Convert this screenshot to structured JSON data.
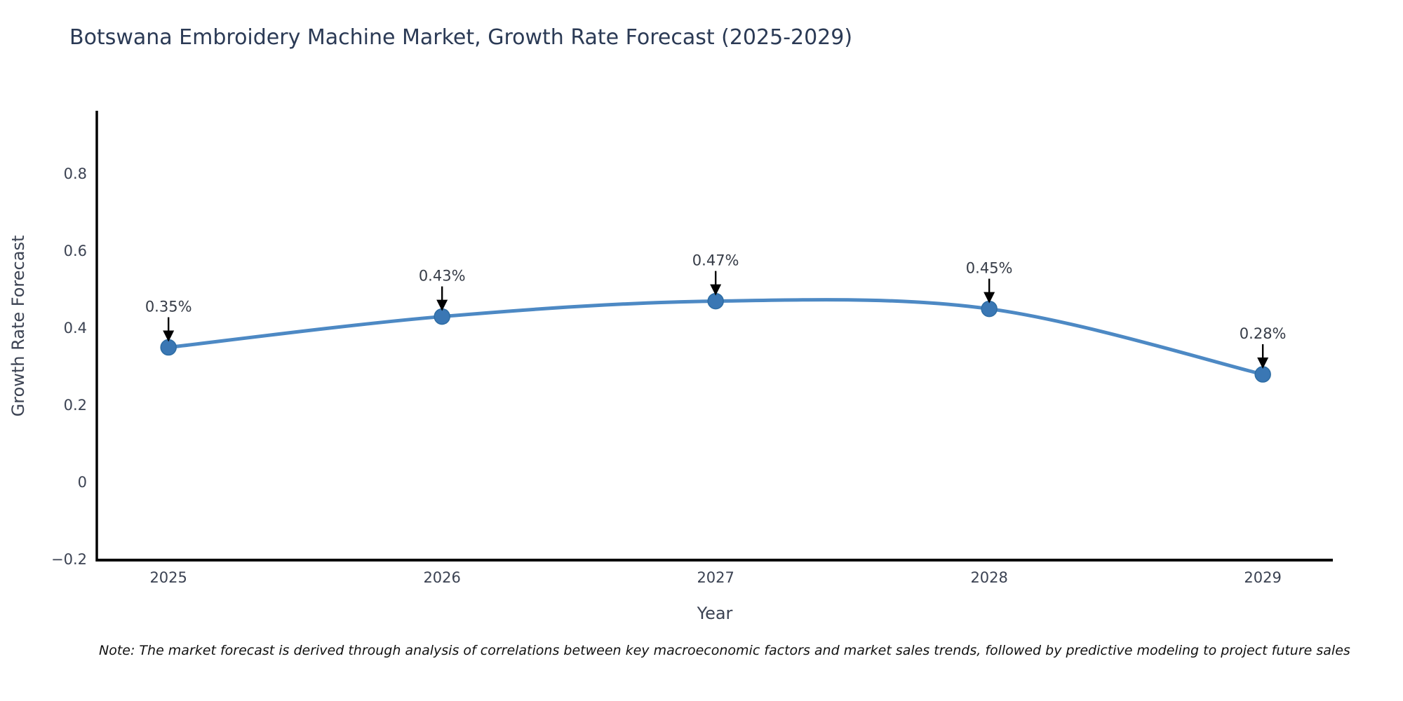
{
  "title": "Botswana Embroidery Machine Market, Growth Rate Forecast (2025-2029)",
  "note": "Note: The market forecast is derived through analysis of correlations between key macroeconomic factors and market sales trends, followed by predictive modeling to project future sales",
  "chart_data": {
    "type": "line",
    "title": "Botswana Embroidery Machine Market, Growth Rate Forecast (2025-2029)",
    "xlabel": "Year",
    "ylabel": "Growth Rate Forecast",
    "x": [
      2025,
      2026,
      2027,
      2028,
      2029
    ],
    "values": [
      0.35,
      0.43,
      0.47,
      0.45,
      0.28
    ],
    "point_labels": [
      "0.35%",
      "0.43%",
      "0.47%",
      "0.45%",
      "0.28%"
    ],
    "xticks": {
      "values": [
        2025,
        2026,
        2027,
        2028,
        2029
      ],
      "labels": [
        "2025",
        "2026",
        "2027",
        "2028",
        "2029"
      ]
    },
    "yticks": {
      "values": [
        -0.2,
        0,
        0.2,
        0.4,
        0.6,
        0.8
      ],
      "labels": [
        "−0.2",
        "0",
        "0.2",
        "0.4",
        "0.6",
        "0.8"
      ]
    },
    "xlim": [
      2024.738,
      2029.256
    ],
    "ylim": [
      -0.202,
      0.964
    ],
    "grid": false,
    "legend": null,
    "smooth_line": true,
    "annotation_style": "label-with-down-arrow"
  },
  "colors": {
    "background": "#ffffff",
    "line": "#4d89c4",
    "marker": "#3a77b4",
    "marker_edge": "#2e6da4",
    "axis_spine": "#000000",
    "tick_text": "#3b4252",
    "title_text": "#2b3a55",
    "annotation_text": "#363c47",
    "arrow": "#000000"
  }
}
